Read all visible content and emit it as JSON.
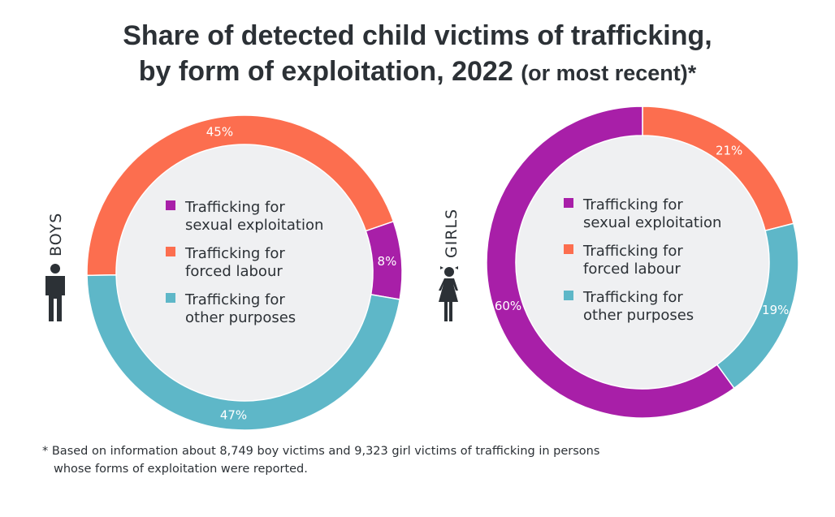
{
  "title_main_1": "Share of detected child victims of trafficking,",
  "title_main_2": "by form of exploitation, 2022",
  "title_suffix": "(or most recent)*",
  "legend": [
    {
      "label_1": "Trafficking for",
      "label_2": "sexual exploitation",
      "color": "#a81fa8"
    },
    {
      "label_1": "Trafficking for",
      "label_2": "forced labour",
      "color": "#fc6e4f"
    },
    {
      "label_1": "Trafficking for",
      "label_2": "other purposes",
      "color": "#5eb7c8"
    }
  ],
  "chart_data": [
    {
      "type": "pie",
      "variant": "donut",
      "label": "BOYS",
      "icon": "boy-icon",
      "categories": [
        "Trafficking for sexual exploitation",
        "Trafficking for forced labour",
        "Trafficking for other purposes"
      ],
      "values": [
        8,
        45,
        47
      ],
      "value_labels": [
        "8%",
        "45%",
        "47%"
      ]
    },
    {
      "type": "pie",
      "variant": "donut",
      "label": "GIRLS",
      "icon": "girl-icon",
      "categories": [
        "Trafficking for sexual exploitation",
        "Trafficking for forced labour",
        "Trafficking for other purposes"
      ],
      "values": [
        60,
        21,
        19
      ],
      "value_labels": [
        "60%",
        "21%",
        "19%"
      ]
    }
  ],
  "footnote_1": "* Based on information about 8,749 boy victims and 9,323 girl victims of trafficking in persons",
  "footnote_2": "whose forms of exploitation were reported."
}
